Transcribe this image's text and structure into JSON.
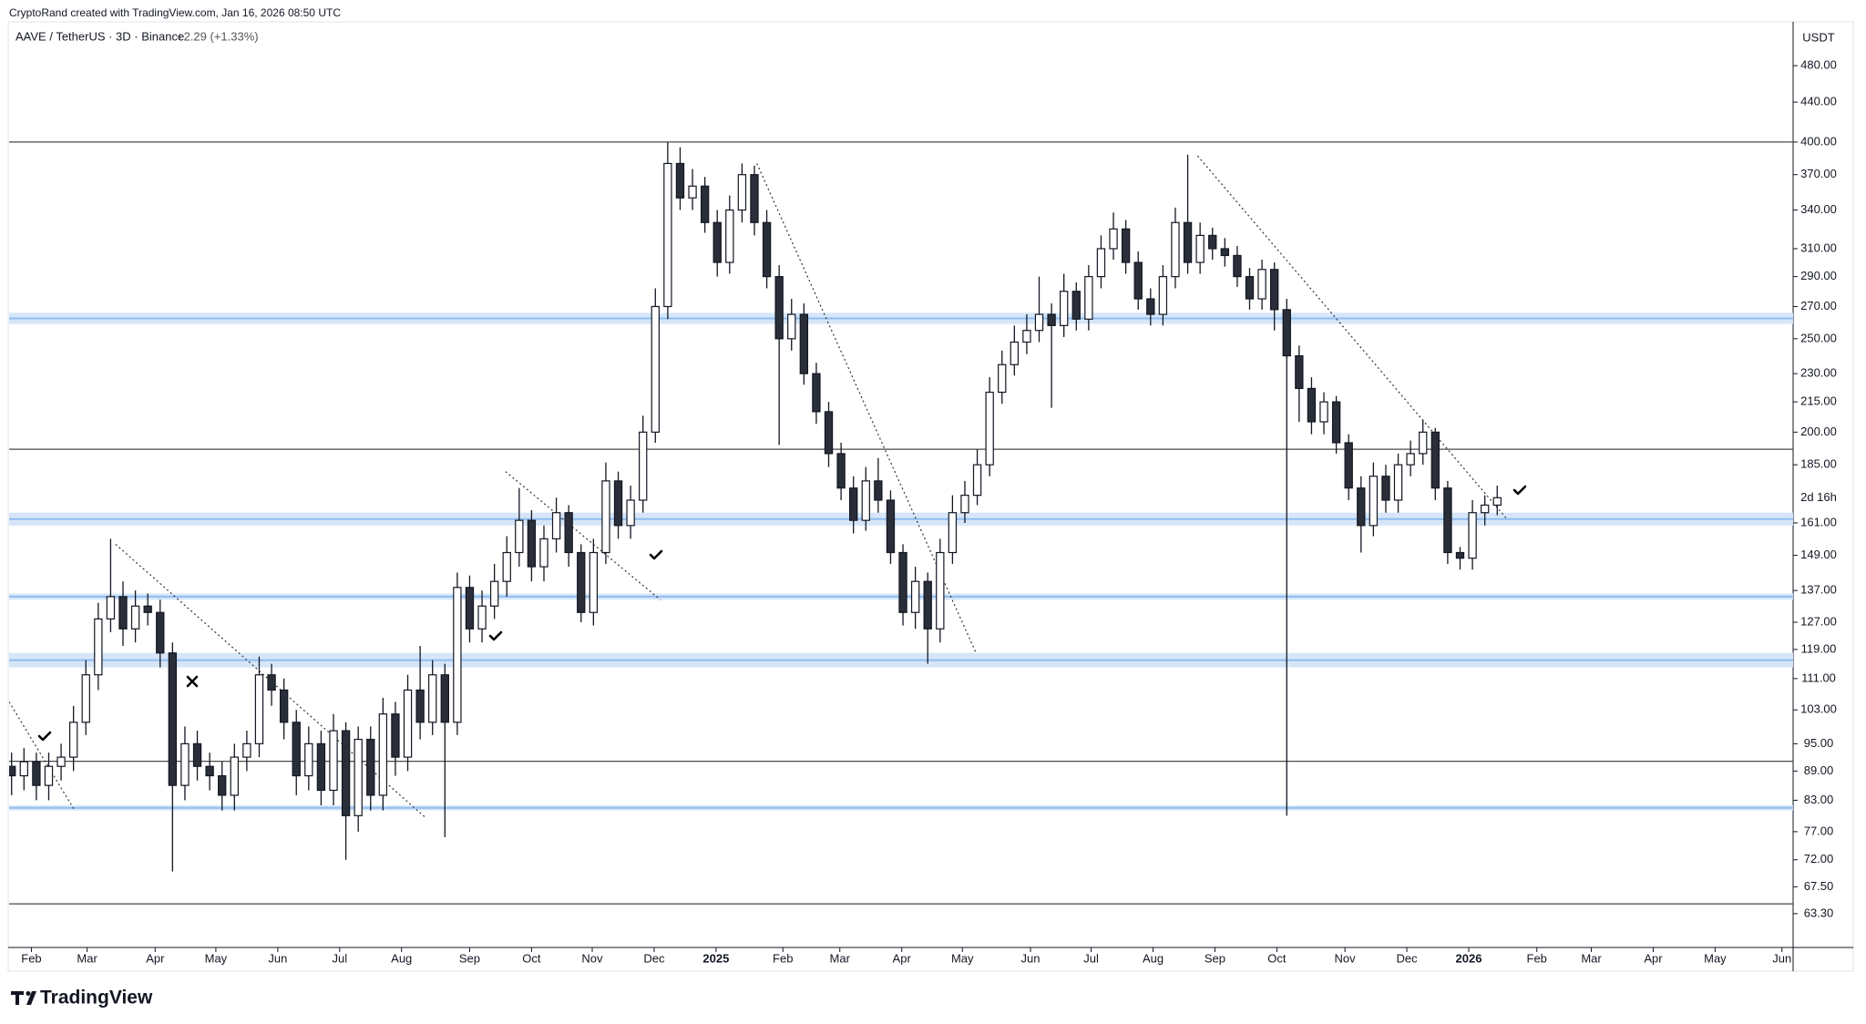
{
  "header": {
    "credit": "CryptoRand created with TradingView.com, Jan 16, 2026 08:50 UTC",
    "logo": "TradingView"
  },
  "chart_data": {
    "type": "candlestick",
    "title": "AAVE / TetherUS · 3D · Binance",
    "change": "+2.29 (+1.33%)",
    "y_unit": "USDT",
    "countdown": "2d 16h",
    "log_scale": true,
    "up_color": "#ffffff",
    "down_color": "#2a2e39",
    "outline_color": "#131722",
    "zone_color": "#d6e6f8",
    "zone_line_color": "#8fbdf0",
    "level_color": "#4a4a4a",
    "trend_color": "#333333",
    "ylim": [
      62.6,
      533
    ],
    "yticks": [
      {
        "value": 480,
        "label": "480.00"
      },
      {
        "value": 440,
        "label": "440.00"
      },
      {
        "value": 400,
        "label": "400.00"
      },
      {
        "value": 370,
        "label": "370.00"
      },
      {
        "value": 340,
        "label": "340.00"
      },
      {
        "value": 310,
        "label": "310.00"
      },
      {
        "value": 290,
        "label": "290.00"
      },
      {
        "value": 270,
        "label": "270.00"
      },
      {
        "value": 250,
        "label": "250.00"
      },
      {
        "value": 230,
        "label": "230.00"
      },
      {
        "value": 215,
        "label": "215.00"
      },
      {
        "value": 200,
        "label": "200.00"
      },
      {
        "value": 185,
        "label": "185.00"
      },
      {
        "value": 161,
        "label": "161.00"
      },
      {
        "value": 149,
        "label": "149.00"
      },
      {
        "value": 137,
        "label": "137.00"
      },
      {
        "value": 127,
        "label": "127.00"
      },
      {
        "value": 119,
        "label": "119.00"
      },
      {
        "value": 111,
        "label": "111.00"
      },
      {
        "value": 103,
        "label": "103.00"
      },
      {
        "value": 95,
        "label": "95.00"
      },
      {
        "value": 89,
        "label": "89.00"
      },
      {
        "value": 83,
        "label": "83.00"
      },
      {
        "value": 77,
        "label": "77.00"
      },
      {
        "value": 72,
        "label": "72.00"
      },
      {
        "value": 67.5,
        "label": "67.50"
      },
      {
        "value": 63.3,
        "label": "63.30"
      }
    ],
    "xlim": [
      -0.2,
      143.9
    ],
    "xticks": [
      {
        "value": 1.6,
        "label": "Feb"
      },
      {
        "value": 6.1,
        "label": "Mar"
      },
      {
        "value": 11.6,
        "label": "Apr"
      },
      {
        "value": 16.5,
        "label": "May"
      },
      {
        "value": 21.5,
        "label": "Jun"
      },
      {
        "value": 26.5,
        "label": "Jul"
      },
      {
        "value": 31.5,
        "label": "Aug"
      },
      {
        "value": 37.0,
        "label": "Sep"
      },
      {
        "value": 42.0,
        "label": "Oct"
      },
      {
        "value": 46.9,
        "label": "Nov"
      },
      {
        "value": 51.9,
        "label": "Dec"
      },
      {
        "value": 56.9,
        "label": "2025"
      },
      {
        "value": 62.3,
        "label": "Feb"
      },
      {
        "value": 66.9,
        "label": "Mar"
      },
      {
        "value": 71.9,
        "label": "Apr"
      },
      {
        "value": 76.8,
        "label": "May"
      },
      {
        "value": 82.3,
        "label": "Jun"
      },
      {
        "value": 87.2,
        "label": "Jul"
      },
      {
        "value": 92.2,
        "label": "Aug"
      },
      {
        "value": 97.2,
        "label": "Sep"
      },
      {
        "value": 102.2,
        "label": "Oct"
      },
      {
        "value": 107.7,
        "label": "Nov"
      },
      {
        "value": 112.7,
        "label": "Dec"
      },
      {
        "value": 117.7,
        "label": "2026"
      },
      {
        "value": 123.2,
        "label": "Feb"
      },
      {
        "value": 127.6,
        "label": "Mar"
      },
      {
        "value": 132.6,
        "label": "Apr"
      },
      {
        "value": 137.6,
        "label": "May"
      },
      {
        "value": 143.0,
        "label": "Jun"
      }
    ],
    "open": [
      90,
      88,
      91,
      86,
      90,
      92,
      100,
      112,
      128,
      135,
      125,
      132,
      130,
      118,
      86,
      95,
      90,
      88,
      84,
      92,
      95,
      112,
      108,
      100,
      88,
      95,
      85,
      98,
      80,
      96,
      84,
      102,
      92,
      108,
      100,
      112,
      100,
      138,
      125,
      132,
      140,
      150,
      162,
      145,
      155,
      165,
      150,
      130,
      150,
      178,
      160,
      170,
      200,
      270,
      380,
      350,
      360,
      330,
      300,
      340,
      370,
      330,
      290,
      250,
      265,
      230,
      210,
      190,
      175,
      162,
      178,
      170,
      150,
      130,
      140,
      125,
      150,
      165,
      172,
      185,
      220,
      235,
      248,
      255,
      265,
      258,
      280,
      262,
      290,
      310,
      325,
      300,
      275,
      265,
      290,
      330,
      300,
      320,
      310,
      305,
      290,
      275,
      295,
      268,
      240,
      222,
      205,
      215,
      195,
      175,
      160,
      180,
      170,
      185,
      190,
      200,
      175,
      150,
      148,
      165,
      168
    ],
    "high": [
      93,
      94,
      93,
      93,
      95,
      104,
      116,
      133,
      155,
      140,
      137,
      136,
      134,
      121,
      99,
      98,
      93,
      91,
      95,
      98,
      117,
      115,
      111,
      103,
      99,
      98,
      102,
      100,
      99,
      99,
      106,
      105,
      112,
      120,
      116,
      115,
      143,
      142,
      137,
      146,
      156,
      175,
      166,
      160,
      171,
      168,
      153,
      155,
      186,
      182,
      176,
      208,
      282,
      400,
      395,
      375,
      368,
      340,
      352,
      380,
      378,
      340,
      298,
      275,
      272,
      236,
      215,
      195,
      180,
      184,
      188,
      174,
      153,
      145,
      143,
      155,
      172,
      178,
      192,
      228,
      243,
      258,
      265,
      290,
      272,
      292,
      286,
      298,
      320,
      338,
      332,
      308,
      282,
      298,
      342,
      388,
      330,
      326,
      318,
      312,
      296,
      302,
      300,
      275,
      246,
      228,
      220,
      218,
      199,
      180,
      186,
      185,
      190,
      196,
      206,
      202,
      178,
      152,
      170,
      172,
      176
    ],
    "low": [
      84,
      85,
      83,
      83,
      87,
      89,
      97,
      108,
      124,
      120,
      121,
      126,
      114,
      70,
      83,
      87,
      85,
      81,
      81,
      89,
      92,
      104,
      96,
      84,
      85,
      82,
      82,
      72,
      77,
      81,
      81,
      88,
      89,
      96,
      97,
      76,
      97,
      121,
      121,
      128,
      135,
      145,
      140,
      140,
      150,
      145,
      127,
      126,
      146,
      155,
      155,
      165,
      195,
      262,
      340,
      340,
      322,
      290,
      292,
      330,
      320,
      282,
      194,
      243,
      224,
      204,
      184,
      170,
      157,
      158,
      165,
      146,
      126,
      125,
      115,
      121,
      146,
      161,
      168,
      180,
      214,
      229,
      241,
      248,
      212,
      251,
      255,
      255,
      282,
      302,
      292,
      268,
      258,
      258,
      282,
      292,
      292,
      302,
      297,
      283,
      268,
      268,
      255,
      80,
      205,
      199,
      199,
      190,
      170,
      150,
      156,
      165,
      165,
      180,
      185,
      170,
      146,
      144,
      144,
      160,
      164
    ],
    "close": [
      88,
      91,
      86,
      90,
      92,
      100,
      112,
      128,
      135,
      125,
      132,
      130,
      118,
      86,
      95,
      90,
      88,
      84,
      92,
      95,
      112,
      108,
      100,
      88,
      95,
      85,
      98,
      80,
      96,
      84,
      102,
      92,
      108,
      100,
      112,
      100,
      138,
      125,
      132,
      140,
      150,
      162,
      145,
      155,
      165,
      150,
      130,
      150,
      178,
      160,
      170,
      200,
      270,
      380,
      350,
      360,
      330,
      300,
      340,
      370,
      330,
      290,
      250,
      265,
      230,
      210,
      190,
      175,
      162,
      178,
      170,
      150,
      130,
      140,
      125,
      150,
      165,
      172,
      185,
      220,
      235,
      248,
      255,
      265,
      258,
      280,
      262,
      290,
      310,
      325,
      300,
      275,
      265,
      290,
      330,
      300,
      320,
      310,
      305,
      290,
      275,
      295,
      268,
      240,
      222,
      205,
      215,
      195,
      175,
      160,
      180,
      170,
      185,
      190,
      200,
      175,
      150,
      148,
      165,
      168,
      171
    ],
    "levels": [
      400,
      192,
      91.1,
      64.8
    ],
    "zones": [
      [
        259,
        266
      ],
      [
        160,
        165
      ],
      [
        134,
        136
      ],
      [
        114,
        118
      ],
      [
        81,
        82
      ]
    ],
    "trendlines": [
      {
        "x": [
          -0.2,
          5.1
        ],
        "y": [
          105,
          81
        ]
      },
      {
        "x": [
          8.4,
          33.5
        ],
        "y": [
          153,
          79.5
        ]
      },
      {
        "x": [
          39.9,
          52.4
        ],
        "y": [
          182,
          134
        ]
      },
      {
        "x": [
          60.2,
          77.9
        ],
        "y": [
          380,
          118
        ]
      },
      {
        "x": [
          95.8,
          120.7
        ],
        "y": [
          387,
          163
        ]
      }
    ]
  }
}
